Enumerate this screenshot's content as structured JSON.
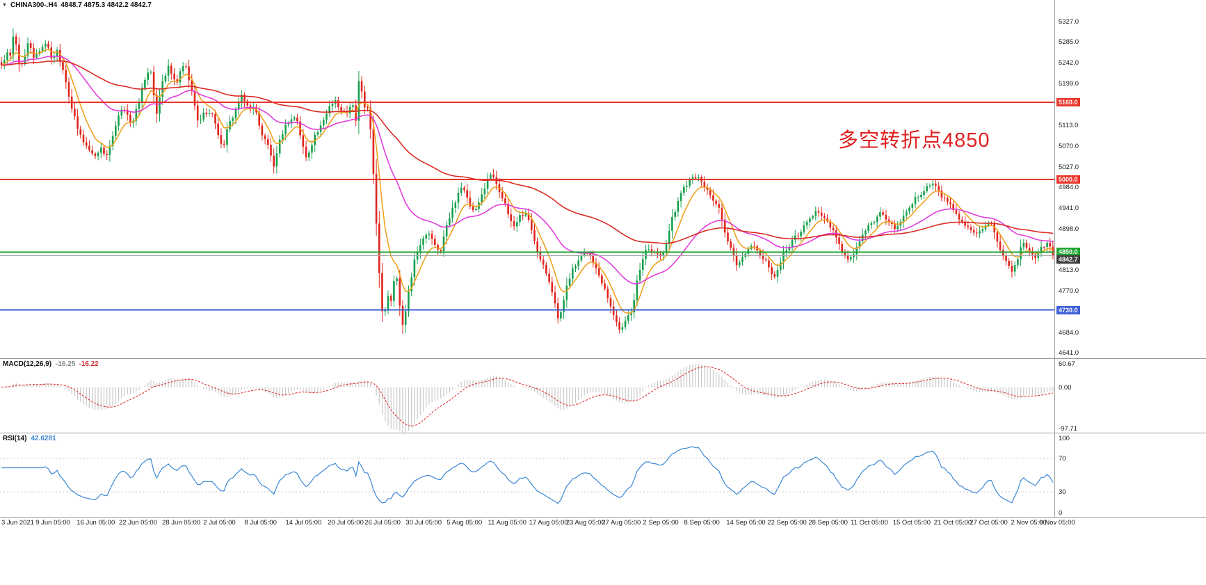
{
  "header": {
    "expand_arrow": "▼",
    "symbol": "CHINA300-.H4",
    "ohlc": "4848.7 4875.3 4842.2 4842.7"
  },
  "annotation": {
    "text": "多空转折点4850",
    "color": "#e01f1f"
  },
  "chart_data": {
    "type": "candlestick",
    "symbol": "CHINA300-",
    "timeframe": "H4",
    "ohlc_readout": {
      "open": 4848.7,
      "high": 4875.3,
      "low": 4842.2,
      "close": 4842.7
    },
    "y_axis": {
      "range_top": 5372,
      "range_bottom": 4630,
      "ticks": [
        5327.0,
        5285.0,
        5242.0,
        5199.0,
        5113.0,
        5070.0,
        5027.0,
        4984.0,
        4941.0,
        4898.0,
        4813.0,
        4770.0,
        4684.0,
        4641.0
      ]
    },
    "levels": [
      {
        "price": 5160.0,
        "label": "5160.0",
        "color": "#e8352a"
      },
      {
        "price": 5000.0,
        "label": "5000.0",
        "color": "#e8352a"
      },
      {
        "price": 4850.0,
        "label": "4850.0",
        "color": "#1fa432"
      },
      {
        "price": 4730.0,
        "label": "4730.0",
        "color": "#3f5fd6"
      }
    ],
    "current_price": {
      "price": 4842.7,
      "label": "4842.7",
      "line_color": "#a8a8a8",
      "label_bg": "#404040"
    },
    "candle_count": 360,
    "noise": 10,
    "wick": 9,
    "colors": {
      "up": "#16a04c",
      "down": "#e0251c",
      "axis_text": "#1a1a1a",
      "separator": "#9a9a9a"
    },
    "moving_averages": [
      {
        "name": "fast-ma",
        "period": 8,
        "color": "#f0a11e"
      },
      {
        "name": "mid-ma",
        "period": 34,
        "color": "#e23ddc"
      },
      {
        "name": "slow-ma",
        "period": 96,
        "color": "#d92b22"
      }
    ],
    "price_path": [
      [
        0.0,
        5238
      ],
      [
        0.006,
        5262
      ],
      [
        0.009,
        5252
      ],
      [
        0.012,
        5312
      ],
      [
        0.016,
        5248
      ],
      [
        0.02,
        5235
      ],
      [
        0.026,
        5288
      ],
      [
        0.031,
        5252
      ],
      [
        0.037,
        5270
      ],
      [
        0.042,
        5285
      ],
      [
        0.048,
        5250
      ],
      [
        0.053,
        5268
      ],
      [
        0.06,
        5218
      ],
      [
        0.066,
        5155
      ],
      [
        0.073,
        5100
      ],
      [
        0.08,
        5072
      ],
      [
        0.088,
        5048
      ],
      [
        0.094,
        5065
      ],
      [
        0.1,
        5050
      ],
      [
        0.106,
        5088
      ],
      [
        0.112,
        5135
      ],
      [
        0.118,
        5150
      ],
      [
        0.124,
        5108
      ],
      [
        0.133,
        5182
      ],
      [
        0.141,
        5238
      ],
      [
        0.147,
        5132
      ],
      [
        0.153,
        5205
      ],
      [
        0.159,
        5232
      ],
      [
        0.166,
        5198
      ],
      [
        0.174,
        5242
      ],
      [
        0.18,
        5192
      ],
      [
        0.187,
        5118
      ],
      [
        0.194,
        5142
      ],
      [
        0.202,
        5130
      ],
      [
        0.21,
        5062
      ],
      [
        0.216,
        5112
      ],
      [
        0.222,
        5140
      ],
      [
        0.228,
        5172
      ],
      [
        0.235,
        5150
      ],
      [
        0.241,
        5148
      ],
      [
        0.248,
        5092
      ],
      [
        0.255,
        5065
      ],
      [
        0.259,
        5022
      ],
      [
        0.266,
        5092
      ],
      [
        0.272,
        5118
      ],
      [
        0.28,
        5132
      ],
      [
        0.286,
        5075
      ],
      [
        0.29,
        5042
      ],
      [
        0.297,
        5088
      ],
      [
        0.305,
        5112
      ],
      [
        0.311,
        5150
      ],
      [
        0.317,
        5168
      ],
      [
        0.322,
        5142
      ],
      [
        0.328,
        5138
      ],
      [
        0.334,
        5155
      ],
      [
        0.337,
        5118
      ],
      [
        0.34,
        5212
      ],
      [
        0.345,
        5152
      ],
      [
        0.349,
        5142
      ],
      [
        0.352,
        5085
      ],
      [
        0.356,
        4928
      ],
      [
        0.36,
        4788
      ],
      [
        0.363,
        4705
      ],
      [
        0.367,
        4762
      ],
      [
        0.371,
        4748
      ],
      [
        0.375,
        4818
      ],
      [
        0.378,
        4752
      ],
      [
        0.382,
        4692
      ],
      [
        0.386,
        4758
      ],
      [
        0.39,
        4802
      ],
      [
        0.394,
        4848
      ],
      [
        0.4,
        4872
      ],
      [
        0.406,
        4892
      ],
      [
        0.412,
        4862
      ],
      [
        0.417,
        4848
      ],
      [
        0.423,
        4902
      ],
      [
        0.428,
        4932
      ],
      [
        0.434,
        4972
      ],
      [
        0.438,
        4988
      ],
      [
        0.444,
        4952
      ],
      [
        0.45,
        4928
      ],
      [
        0.456,
        4962
      ],
      [
        0.462,
        5002
      ],
      [
        0.467,
        5012
      ],
      [
        0.471,
        4992
      ],
      [
        0.477,
        4958
      ],
      [
        0.482,
        4928
      ],
      [
        0.487,
        4902
      ],
      [
        0.493,
        4925
      ],
      [
        0.499,
        4932
      ],
      [
        0.505,
        4888
      ],
      [
        0.51,
        4852
      ],
      [
        0.516,
        4822
      ],
      [
        0.521,
        4792
      ],
      [
        0.527,
        4742
      ],
      [
        0.53,
        4702
      ],
      [
        0.534,
        4742
      ],
      [
        0.538,
        4788
      ],
      [
        0.543,
        4812
      ],
      [
        0.548,
        4828
      ],
      [
        0.553,
        4842
      ],
      [
        0.558,
        4852
      ],
      [
        0.564,
        4822
      ],
      [
        0.569,
        4798
      ],
      [
        0.575,
        4772
      ],
      [
        0.58,
        4732
      ],
      [
        0.585,
        4708
      ],
      [
        0.589,
        4682
      ],
      [
        0.593,
        4712
      ],
      [
        0.599,
        4722
      ],
      [
        0.604,
        4782
      ],
      [
        0.609,
        4832
      ],
      [
        0.614,
        4862
      ],
      [
        0.62,
        4852
      ],
      [
        0.626,
        4842
      ],
      [
        0.631,
        4858
      ],
      [
        0.637,
        4912
      ],
      [
        0.642,
        4945
      ],
      [
        0.647,
        4978
      ],
      [
        0.653,
        4995
      ],
      [
        0.658,
        5012
      ],
      [
        0.664,
        4998
      ],
      [
        0.67,
        4982
      ],
      [
        0.676,
        4962
      ],
      [
        0.682,
        4942
      ],
      [
        0.688,
        4888
      ],
      [
        0.694,
        4852
      ],
      [
        0.7,
        4822
      ],
      [
        0.706,
        4842
      ],
      [
        0.712,
        4868
      ],
      [
        0.718,
        4852
      ],
      [
        0.724,
        4838
      ],
      [
        0.73,
        4818
      ],
      [
        0.736,
        4798
      ],
      [
        0.742,
        4838
      ],
      [
        0.748,
        4862
      ],
      [
        0.754,
        4878
      ],
      [
        0.76,
        4892
      ],
      [
        0.768,
        4918
      ],
      [
        0.776,
        4938
      ],
      [
        0.782,
        4918
      ],
      [
        0.789,
        4902
      ],
      [
        0.797,
        4862
      ],
      [
        0.806,
        4828
      ],
      [
        0.813,
        4858
      ],
      [
        0.821,
        4892
      ],
      [
        0.829,
        4912
      ],
      [
        0.836,
        4932
      ],
      [
        0.844,
        4912
      ],
      [
        0.852,
        4898
      ],
      [
        0.86,
        4932
      ],
      [
        0.869,
        4962
      ],
      [
        0.877,
        4978
      ],
      [
        0.886,
        4992
      ],
      [
        0.893,
        4968
      ],
      [
        0.9,
        4952
      ],
      [
        0.908,
        4932
      ],
      [
        0.913,
        4912
      ],
      [
        0.92,
        4898
      ],
      [
        0.927,
        4892
      ],
      [
        0.934,
        4902
      ],
      [
        0.941,
        4908
      ],
      [
        0.948,
        4862
      ],
      [
        0.954,
        4832
      ],
      [
        0.962,
        4805
      ],
      [
        0.967,
        4842
      ],
      [
        0.971,
        4872
      ],
      [
        0.977,
        4852
      ],
      [
        0.983,
        4838
      ],
      [
        0.989,
        4858
      ],
      [
        0.995,
        4872
      ],
      [
        1.0,
        4843
      ]
    ],
    "x_labels": [
      {
        "text": "3 Jun 2021",
        "x": 0.003
      },
      {
        "text": "9 Jun 05:00",
        "x": 0.043
      },
      {
        "text": "16 Jun 05:00",
        "x": 0.082
      },
      {
        "text": "22 Jun 05:00",
        "x": 0.122
      },
      {
        "text": "28 Jun 05:00",
        "x": 0.163
      },
      {
        "text": "2 Jul 05:00",
        "x": 0.202
      },
      {
        "text": "8 Jul 05:00",
        "x": 0.241
      },
      {
        "text": "14 Jul 05:00",
        "x": 0.28
      },
      {
        "text": "20 Jul 05:00",
        "x": 0.32
      },
      {
        "text": "26 Jul 05:00",
        "x": 0.355
      },
      {
        "text": "30 Jul 05:00",
        "x": 0.394
      },
      {
        "text": "5 Aug 05:00",
        "x": 0.433
      },
      {
        "text": "11 Aug 05:00",
        "x": 0.472
      },
      {
        "text": "17 Aug 05:00",
        "x": 0.511
      },
      {
        "text": "23 Aug 05:00",
        "x": 0.546
      },
      {
        "text": "27 Aug 05:00",
        "x": 0.58
      },
      {
        "text": "2 Sep 05:00",
        "x": 0.619
      },
      {
        "text": "8 Sep 05:00",
        "x": 0.658
      },
      {
        "text": "14 Sep 05:00",
        "x": 0.698
      },
      {
        "text": "22 Sep 05:00",
        "x": 0.737
      },
      {
        "text": "28 Sep 05:00",
        "x": 0.776
      },
      {
        "text": "11 Oct 05:00",
        "x": 0.816
      },
      {
        "text": "15 Oct 05:00",
        "x": 0.856
      },
      {
        "text": "21 Oct 05:00",
        "x": 0.895
      },
      {
        "text": "27 Oct 05:00",
        "x": 0.929
      },
      {
        "text": "2 Nov 05:00",
        "x": 0.968
      },
      {
        "text": "8 Nov 05:00",
        "x": 0.995
      }
    ],
    "indicators": {
      "macd": {
        "label": "MACD(12,26,9)",
        "main_value": "-16.25",
        "signal_value": "-16.22",
        "fast": 12,
        "slow": 26,
        "signal": 9,
        "scale_max": 60.67,
        "scale_min": -97.71,
        "axis_labels": [
          {
            "text": "60.67",
            "value": 60.67
          },
          {
            "text": "0.00",
            "value": 0
          },
          {
            "text": "-97.71",
            "value": -97.71
          }
        ],
        "histogram_color": "#c8c8c8",
        "signal_color": "#e03030"
      },
      "rsi": {
        "label": "RSI(14)",
        "period": 14,
        "value": "42.6281",
        "axis_labels": [
          {
            "text": "100",
            "value": 100
          },
          {
            "text": "70",
            "value": 70
          },
          {
            "text": "30",
            "value": 30
          },
          {
            "text": "0",
            "value": 0
          }
        ],
        "guide_levels": [
          70,
          30
        ],
        "line_color": "#3a87d6"
      }
    }
  }
}
